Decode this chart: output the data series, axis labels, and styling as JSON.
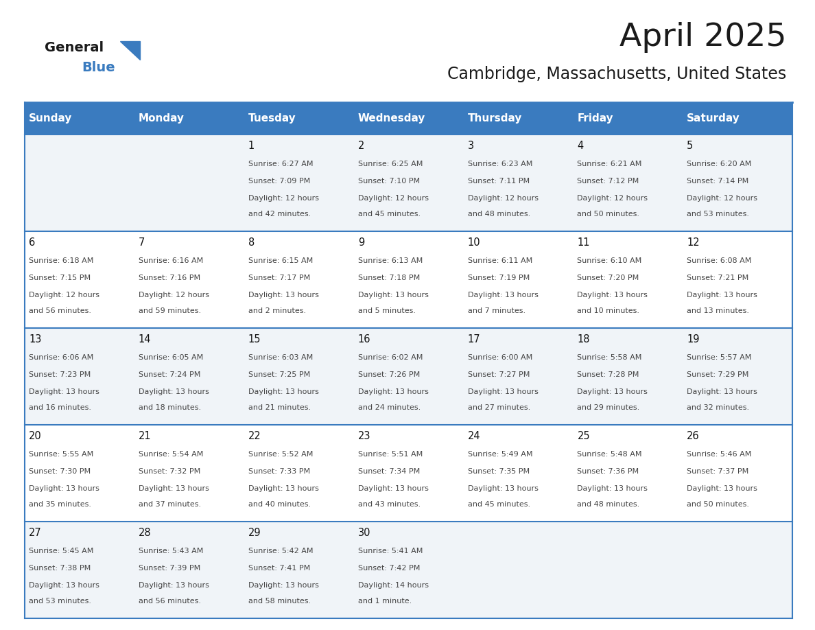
{
  "title": "April 2025",
  "subtitle": "Cambridge, Massachusetts, United States",
  "header_bg_color": "#3a7bbf",
  "header_text_color": "#ffffff",
  "row_bg_odd": "#f0f4f8",
  "row_bg_even": "#ffffff",
  "border_color": "#3a7bbf",
  "cell_text_color": "#333333",
  "days_of_week": [
    "Sunday",
    "Monday",
    "Tuesday",
    "Wednesday",
    "Thursday",
    "Friday",
    "Saturday"
  ],
  "weeks": [
    [
      {
        "day": "",
        "sunrise": "",
        "sunset": "",
        "daylight": ""
      },
      {
        "day": "",
        "sunrise": "",
        "sunset": "",
        "daylight": ""
      },
      {
        "day": "1",
        "sunrise": "6:27 AM",
        "sunset": "7:09 PM",
        "daylight": "12 hours and 42 minutes."
      },
      {
        "day": "2",
        "sunrise": "6:25 AM",
        "sunset": "7:10 PM",
        "daylight": "12 hours and 45 minutes."
      },
      {
        "day": "3",
        "sunrise": "6:23 AM",
        "sunset": "7:11 PM",
        "daylight": "12 hours and 48 minutes."
      },
      {
        "day": "4",
        "sunrise": "6:21 AM",
        "sunset": "7:12 PM",
        "daylight": "12 hours and 50 minutes."
      },
      {
        "day": "5",
        "sunrise": "6:20 AM",
        "sunset": "7:14 PM",
        "daylight": "12 hours and 53 minutes."
      }
    ],
    [
      {
        "day": "6",
        "sunrise": "6:18 AM",
        "sunset": "7:15 PM",
        "daylight": "12 hours and 56 minutes."
      },
      {
        "day": "7",
        "sunrise": "6:16 AM",
        "sunset": "7:16 PM",
        "daylight": "12 hours and 59 minutes."
      },
      {
        "day": "8",
        "sunrise": "6:15 AM",
        "sunset": "7:17 PM",
        "daylight": "13 hours and 2 minutes."
      },
      {
        "day": "9",
        "sunrise": "6:13 AM",
        "sunset": "7:18 PM",
        "daylight": "13 hours and 5 minutes."
      },
      {
        "day": "10",
        "sunrise": "6:11 AM",
        "sunset": "7:19 PM",
        "daylight": "13 hours and 7 minutes."
      },
      {
        "day": "11",
        "sunrise": "6:10 AM",
        "sunset": "7:20 PM",
        "daylight": "13 hours and 10 minutes."
      },
      {
        "day": "12",
        "sunrise": "6:08 AM",
        "sunset": "7:21 PM",
        "daylight": "13 hours and 13 minutes."
      }
    ],
    [
      {
        "day": "13",
        "sunrise": "6:06 AM",
        "sunset": "7:23 PM",
        "daylight": "13 hours and 16 minutes."
      },
      {
        "day": "14",
        "sunrise": "6:05 AM",
        "sunset": "7:24 PM",
        "daylight": "13 hours and 18 minutes."
      },
      {
        "day": "15",
        "sunrise": "6:03 AM",
        "sunset": "7:25 PM",
        "daylight": "13 hours and 21 minutes."
      },
      {
        "day": "16",
        "sunrise": "6:02 AM",
        "sunset": "7:26 PM",
        "daylight": "13 hours and 24 minutes."
      },
      {
        "day": "17",
        "sunrise": "6:00 AM",
        "sunset": "7:27 PM",
        "daylight": "13 hours and 27 minutes."
      },
      {
        "day": "18",
        "sunrise": "5:58 AM",
        "sunset": "7:28 PM",
        "daylight": "13 hours and 29 minutes."
      },
      {
        "day": "19",
        "sunrise": "5:57 AM",
        "sunset": "7:29 PM",
        "daylight": "13 hours and 32 minutes."
      }
    ],
    [
      {
        "day": "20",
        "sunrise": "5:55 AM",
        "sunset": "7:30 PM",
        "daylight": "13 hours and 35 minutes."
      },
      {
        "day": "21",
        "sunrise": "5:54 AM",
        "sunset": "7:32 PM",
        "daylight": "13 hours and 37 minutes."
      },
      {
        "day": "22",
        "sunrise": "5:52 AM",
        "sunset": "7:33 PM",
        "daylight": "13 hours and 40 minutes."
      },
      {
        "day": "23",
        "sunrise": "5:51 AM",
        "sunset": "7:34 PM",
        "daylight": "13 hours and 43 minutes."
      },
      {
        "day": "24",
        "sunrise": "5:49 AM",
        "sunset": "7:35 PM",
        "daylight": "13 hours and 45 minutes."
      },
      {
        "day": "25",
        "sunrise": "5:48 AM",
        "sunset": "7:36 PM",
        "daylight": "13 hours and 48 minutes."
      },
      {
        "day": "26",
        "sunrise": "5:46 AM",
        "sunset": "7:37 PM",
        "daylight": "13 hours and 50 minutes."
      }
    ],
    [
      {
        "day": "27",
        "sunrise": "5:45 AM",
        "sunset": "7:38 PM",
        "daylight": "13 hours and 53 minutes."
      },
      {
        "day": "28",
        "sunrise": "5:43 AM",
        "sunset": "7:39 PM",
        "daylight": "13 hours and 56 minutes."
      },
      {
        "day": "29",
        "sunrise": "5:42 AM",
        "sunset": "7:41 PM",
        "daylight": "13 hours and 58 minutes."
      },
      {
        "day": "30",
        "sunrise": "5:41 AM",
        "sunset": "7:42 PM",
        "daylight": "14 hours and 1 minute."
      },
      {
        "day": "",
        "sunrise": "",
        "sunset": "",
        "daylight": ""
      },
      {
        "day": "",
        "sunrise": "",
        "sunset": "",
        "daylight": ""
      },
      {
        "day": "",
        "sunrise": "",
        "sunset": "",
        "daylight": ""
      }
    ]
  ]
}
